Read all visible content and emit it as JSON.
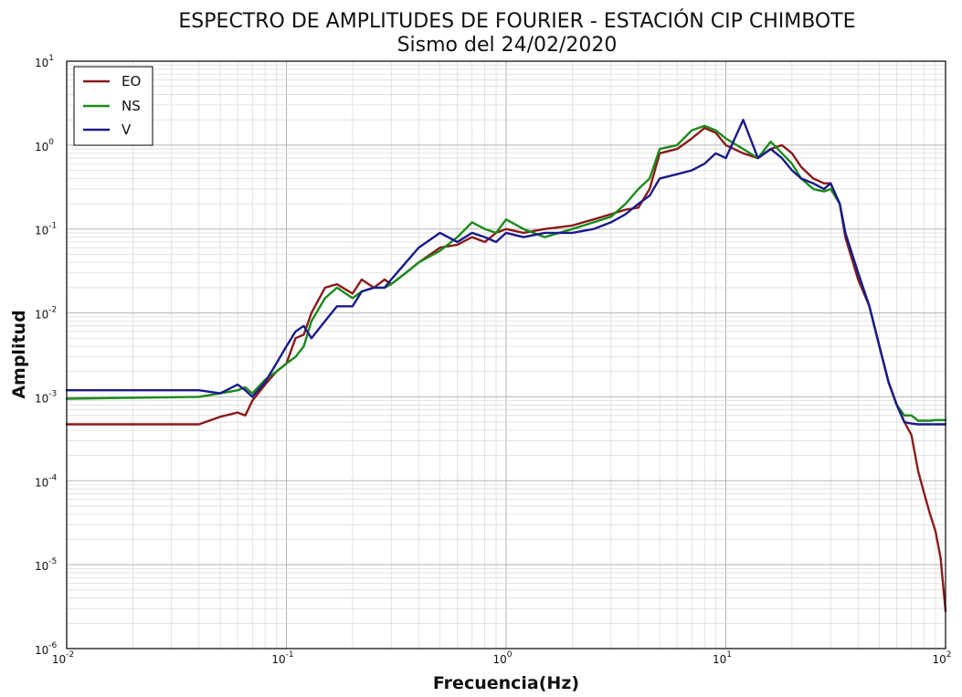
{
  "chart_data": {
    "type": "line",
    "title": "ESPECTRO DE AMPLITUDES DE FOURIER - ESTACIÓN CIP CHIMBOTE",
    "subtitle": "Sismo del 24/02/2020",
    "xlabel": "Frecuencia(Hz)",
    "ylabel": "Amplitud",
    "xscale": "log",
    "yscale": "log",
    "xlim": [
      0.01,
      100
    ],
    "ylim": [
      1e-06,
      10
    ],
    "grid": true,
    "legend_position": "top-left",
    "x_ticks": [
      {
        "base": "10",
        "exp": "-2"
      },
      {
        "base": "10",
        "exp": "-1"
      },
      {
        "base": "10",
        "exp": "0"
      },
      {
        "base": "10",
        "exp": "1"
      },
      {
        "base": "10",
        "exp": "2"
      }
    ],
    "y_ticks": [
      {
        "base": "10",
        "exp": "-6"
      },
      {
        "base": "10",
        "exp": "-5"
      },
      {
        "base": "10",
        "exp": "-4"
      },
      {
        "base": "10",
        "exp": "-3"
      },
      {
        "base": "10",
        "exp": "-2"
      },
      {
        "base": "10",
        "exp": "-1"
      },
      {
        "base": "10",
        "exp": "0"
      },
      {
        "base": "10",
        "exp": "1"
      }
    ],
    "series": [
      {
        "name": "EO",
        "color": "#8b1a1a",
        "x": [
          0.01,
          0.04,
          0.05,
          0.06,
          0.065,
          0.07,
          0.08,
          0.09,
          0.1,
          0.11,
          0.12,
          0.13,
          0.15,
          0.17,
          0.2,
          0.22,
          0.25,
          0.28,
          0.3,
          0.35,
          0.4,
          0.5,
          0.6,
          0.7,
          0.8,
          0.9,
          1.0,
          1.2,
          1.5,
          2.0,
          2.5,
          3.0,
          3.5,
          4.0,
          4.5,
          5.0,
          6.0,
          7.0,
          8.0,
          9.0,
          10,
          12,
          14,
          16,
          18,
          20,
          22,
          25,
          28,
          30,
          33,
          35,
          40,
          45,
          50,
          55,
          60,
          65,
          70,
          75,
          80,
          85,
          90,
          95,
          100
        ],
        "y": [
          0.00047,
          0.00047,
          0.00058,
          0.00065,
          0.0006,
          0.0009,
          0.0014,
          0.002,
          0.0025,
          0.005,
          0.0055,
          0.01,
          0.02,
          0.022,
          0.017,
          0.025,
          0.02,
          0.025,
          0.022,
          0.03,
          0.04,
          0.06,
          0.065,
          0.08,
          0.07,
          0.09,
          0.1,
          0.09,
          0.1,
          0.11,
          0.13,
          0.15,
          0.17,
          0.18,
          0.3,
          0.8,
          0.9,
          1.2,
          1.6,
          1.4,
          1.0,
          0.8,
          0.7,
          0.9,
          1.0,
          0.8,
          0.55,
          0.4,
          0.35,
          0.35,
          0.2,
          0.08,
          0.025,
          0.012,
          0.004,
          0.0015,
          0.0008,
          0.0005,
          0.00035,
          0.00013,
          7e-05,
          4e-05,
          2.5e-05,
          1.2e-05,
          2.8e-06
        ]
      },
      {
        "name": "NS",
        "color": "#1a8b1a",
        "x": [
          0.01,
          0.04,
          0.05,
          0.06,
          0.065,
          0.07,
          0.08,
          0.09,
          0.1,
          0.11,
          0.12,
          0.13,
          0.15,
          0.17,
          0.2,
          0.22,
          0.25,
          0.28,
          0.3,
          0.35,
          0.4,
          0.5,
          0.6,
          0.7,
          0.8,
          0.9,
          1.0,
          1.2,
          1.5,
          2.0,
          2.5,
          3.0,
          3.5,
          4.0,
          4.5,
          5.0,
          6.0,
          7.0,
          8.0,
          9.0,
          10,
          12,
          14,
          16,
          18,
          20,
          22,
          25,
          28,
          30,
          33,
          35,
          40,
          45,
          50,
          55,
          60,
          65,
          70,
          75,
          80,
          85,
          90,
          95,
          100
        ],
        "y": [
          0.00095,
          0.001,
          0.0011,
          0.0012,
          0.0013,
          0.0011,
          0.0016,
          0.002,
          0.0025,
          0.003,
          0.004,
          0.008,
          0.015,
          0.02,
          0.015,
          0.018,
          0.02,
          0.02,
          0.022,
          0.03,
          0.04,
          0.055,
          0.08,
          0.12,
          0.1,
          0.09,
          0.13,
          0.1,
          0.08,
          0.1,
          0.12,
          0.14,
          0.2,
          0.3,
          0.4,
          0.9,
          1.0,
          1.5,
          1.7,
          1.5,
          1.2,
          0.9,
          0.7,
          1.1,
          0.8,
          0.6,
          0.4,
          0.3,
          0.28,
          0.3,
          0.2,
          0.09,
          0.03,
          0.012,
          0.004,
          0.0015,
          0.0008,
          0.0006,
          0.0006,
          0.00052,
          0.00052,
          0.00052,
          0.00053,
          0.00053,
          0.00053
        ]
      },
      {
        "name": "V",
        "color": "#1a1a8b",
        "x": [
          0.01,
          0.04,
          0.05,
          0.06,
          0.065,
          0.07,
          0.08,
          0.09,
          0.1,
          0.11,
          0.12,
          0.13,
          0.15,
          0.17,
          0.2,
          0.22,
          0.25,
          0.28,
          0.3,
          0.35,
          0.4,
          0.5,
          0.6,
          0.7,
          0.8,
          0.9,
          1.0,
          1.2,
          1.5,
          2.0,
          2.5,
          3.0,
          3.5,
          4.0,
          4.5,
          5.0,
          6.0,
          7.0,
          8.0,
          9.0,
          10,
          12,
          14,
          16,
          18,
          20,
          22,
          25,
          28,
          30,
          33,
          35,
          40,
          45,
          50,
          55,
          60,
          65,
          70,
          75,
          80,
          85,
          90,
          95,
          100
        ],
        "y": [
          0.0012,
          0.0012,
          0.0011,
          0.0014,
          0.0012,
          0.001,
          0.0015,
          0.0025,
          0.004,
          0.006,
          0.007,
          0.005,
          0.008,
          0.012,
          0.012,
          0.018,
          0.02,
          0.02,
          0.025,
          0.04,
          0.06,
          0.09,
          0.07,
          0.09,
          0.08,
          0.07,
          0.09,
          0.08,
          0.09,
          0.09,
          0.1,
          0.12,
          0.15,
          0.2,
          0.25,
          0.4,
          0.45,
          0.5,
          0.6,
          0.8,
          0.7,
          2.0,
          0.7,
          0.9,
          0.7,
          0.5,
          0.4,
          0.35,
          0.3,
          0.35,
          0.2,
          0.09,
          0.03,
          0.012,
          0.004,
          0.0015,
          0.0008,
          0.0005,
          0.00048,
          0.00047,
          0.00047,
          0.00047,
          0.00047,
          0.00047,
          0.00047
        ]
      }
    ]
  }
}
